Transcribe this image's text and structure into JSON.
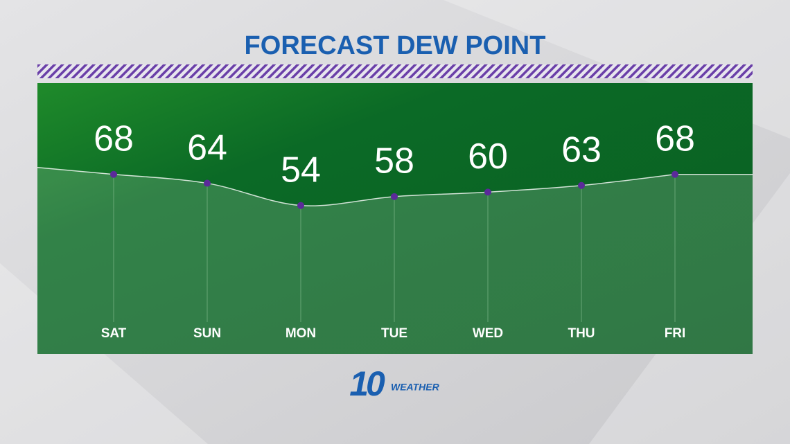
{
  "chart_data": {
    "type": "line",
    "title": "FORECAST DEW POINT",
    "categories": [
      "SAT",
      "SUN",
      "MON",
      "TUE",
      "WED",
      "THU",
      "FRI"
    ],
    "values": [
      68,
      64,
      54,
      58,
      60,
      63,
      68
    ],
    "color": "#ffffff",
    "marker_color": "#5b2a9a",
    "ylim": [
      0,
      100
    ]
  },
  "logo": {
    "number": "10",
    "text": "WEATHER"
  }
}
